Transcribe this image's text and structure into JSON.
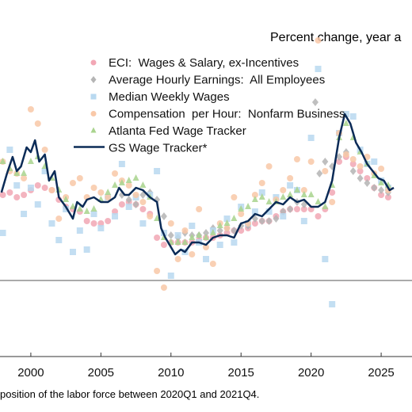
{
  "subtitle": "Percent change, year a",
  "footnote": "position of the labor force between 2020Q1 and 2021Q4.",
  "chart_data": {
    "type": "scatter",
    "xlim": [
      1997.8,
      2027.2
    ],
    "ylim": [
      -3.2,
      10.8
    ],
    "x_ticks": [
      2000,
      2005,
      2010,
      2015,
      2020,
      2025
    ],
    "x_tick_labels": [
      "2000",
      "2005",
      "2010",
      "2015",
      "2020",
      "2025"
    ],
    "zero_line": 0,
    "grid": false,
    "legend_position": "top-left",
    "series": [
      {
        "name": "ECI:  Wages & Salary, ex-Incentives",
        "kind": "dots",
        "marker": "circle",
        "color": "#f2a7b5",
        "x": [
          1998.0,
          1998.5,
          1999.0,
          1999.5,
          2000.0,
          2000.5,
          2001.0,
          2001.5,
          2002.0,
          2002.5,
          2003.0,
          2003.5,
          2004.0,
          2004.5,
          2005.0,
          2005.5,
          2006.0,
          2006.5,
          2007.0,
          2007.5,
          2008.0,
          2008.5,
          2009.0,
          2009.5,
          2010.0,
          2010.5,
          2011.0,
          2011.5,
          2012.0,
          2012.5,
          2013.0,
          2013.5,
          2014.0,
          2014.5,
          2015.0,
          2015.5,
          2016.0,
          2016.5,
          2017.0,
          2017.5,
          2018.0,
          2018.5,
          2019.0,
          2019.5,
          2020.0,
          2020.5,
          2021.0,
          2021.5,
          2022.0,
          2022.5,
          2023.0,
          2023.5,
          2024.0,
          2024.5,
          2025.0,
          2025.5
        ],
        "y": [
          3.6,
          3.7,
          3.5,
          3.6,
          3.8,
          4.0,
          3.9,
          3.8,
          3.4,
          3.1,
          3.0,
          2.9,
          2.5,
          2.4,
          2.4,
          2.5,
          2.9,
          3.2,
          3.3,
          3.2,
          3.0,
          2.8,
          1.8,
          1.5,
          1.6,
          1.6,
          1.6,
          1.6,
          1.7,
          1.8,
          1.8,
          1.9,
          2.0,
          2.1,
          2.1,
          2.2,
          2.4,
          2.5,
          2.5,
          2.7,
          2.9,
          3.0,
          3.0,
          3.0,
          3.0,
          2.7,
          3.0,
          3.7,
          5.0,
          5.2,
          4.9,
          4.6,
          4.3,
          3.9,
          3.6,
          3.5
        ]
      },
      {
        "name": "Average Hourly Earnings:  All Employees",
        "kind": "dots",
        "marker": "diamond",
        "color": "#b5b5b5",
        "x": [
          2006.5,
          2007.0,
          2007.5,
          2008.0,
          2008.5,
          2009.0,
          2009.5,
          2010.0,
          2010.5,
          2011.0,
          2011.5,
          2012.0,
          2012.5,
          2013.0,
          2013.5,
          2014.0,
          2014.5,
          2015.0,
          2015.5,
          2016.0,
          2016.5,
          2017.0,
          2017.5,
          2018.0,
          2018.5,
          2019.0,
          2019.5,
          2020.3,
          2020.6,
          2021.0,
          2021.5,
          2022.0,
          2022.5,
          2023.0,
          2023.5,
          2024.0,
          2024.5,
          2025.0,
          2025.5
        ],
        "y": [
          3.6,
          3.4,
          3.2,
          3.6,
          3.7,
          3.4,
          2.7,
          1.9,
          1.8,
          2.0,
          1.9,
          1.9,
          2.0,
          2.2,
          2.1,
          2.2,
          2.1,
          2.3,
          2.3,
          2.6,
          2.5,
          2.5,
          2.6,
          2.9,
          3.0,
          3.3,
          3.2,
          7.5,
          4.5,
          5.0,
          4.8,
          5.2,
          5.4,
          4.6,
          4.3,
          4.1,
          3.9,
          3.8,
          3.7
        ]
      },
      {
        "name": "Median Weekly Wages",
        "kind": "dots",
        "marker": "square",
        "color": "#b9d9f0",
        "x": [
          1998.0,
          1998.5,
          1999.0,
          1999.5,
          2000.0,
          2000.5,
          2001.0,
          2001.5,
          2002.0,
          2002.5,
          2003.0,
          2003.5,
          2004.0,
          2004.5,
          2005.0,
          2005.5,
          2006.0,
          2006.5,
          2007.0,
          2007.5,
          2008.0,
          2008.5,
          2009.0,
          2009.5,
          2010.0,
          2010.5,
          2011.0,
          2011.5,
          2012.0,
          2012.5,
          2013.0,
          2013.5,
          2014.0,
          2014.5,
          2015.0,
          2015.5,
          2016.0,
          2016.5,
          2017.0,
          2017.5,
          2018.0,
          2018.5,
          2019.0,
          2019.5,
          2020.0,
          2020.5,
          2021.0,
          2021.5,
          2022.0,
          2022.5,
          2023.0,
          2023.5,
          2024.0,
          2024.5,
          2025.0,
          2025.5
        ],
        "y": [
          2.0,
          5.5,
          4.0,
          2.8,
          3.9,
          3.2,
          4.6,
          2.4,
          1.7,
          3.0,
          1.2,
          2.1,
          1.3,
          2.8,
          2.2,
          3.5,
          2.7,
          4.9,
          3.1,
          3.5,
          2.4,
          3.6,
          4.6,
          2.0,
          0.2,
          1.9,
          1.2,
          2.3,
          1.6,
          0.9,
          2.1,
          1.5,
          2.6,
          1.6,
          3.1,
          2.4,
          2.9,
          3.7,
          2.9,
          3.5,
          2.7,
          4.0,
          3.8,
          2.5,
          6.0,
          8.9,
          0.9,
          -1.0,
          6.2,
          7.0,
          6.9,
          5.5,
          4.9,
          5.0,
          4.2,
          3.9
        ]
      },
      {
        "name": "Compensation  per Hour:  Nonfarm Business",
        "kind": "dots",
        "marker": "circle",
        "color": "#f9c8a8",
        "x": [
          1998.0,
          1998.5,
          1999.0,
          1999.5,
          2000.0,
          2000.5,
          2001.0,
          2001.5,
          2002.0,
          2002.5,
          2003.0,
          2003.5,
          2004.0,
          2004.5,
          2005.0,
          2005.5,
          2006.0,
          2006.5,
          2007.0,
          2007.5,
          2008.0,
          2008.5,
          2009.0,
          2009.5,
          2010.0,
          2010.5,
          2011.0,
          2011.5,
          2012.0,
          2012.5,
          2013.0,
          2013.5,
          2014.0,
          2014.5,
          2015.0,
          2015.5,
          2016.0,
          2016.5,
          2017.0,
          2017.5,
          2018.0,
          2018.5,
          2019.0,
          2019.5,
          2020.0,
          2020.5,
          2021.0,
          2021.5,
          2022.0,
          2022.5,
          2023.0,
          2023.5,
          2024.0,
          2024.5,
          2025.0,
          2025.5
        ],
        "y": [
          5.0,
          4.6,
          4.5,
          4.3,
          7.2,
          6.6,
          5.5,
          3.8,
          2.6,
          3.5,
          4.1,
          4.3,
          3.5,
          3.9,
          3.7,
          3.5,
          4.5,
          4.2,
          4.0,
          3.6,
          3.3,
          2.7,
          0.4,
          -0.3,
          2.4,
          0.9,
          2.1,
          1.1,
          3.0,
          1.4,
          0.7,
          2.4,
          2.2,
          3.5,
          2.8,
          2.4,
          3.6,
          4.1,
          4.8,
          3.4,
          3.8,
          4.3,
          5.1,
          3.8,
          5.0,
          10.1,
          4.6,
          3.3,
          6.2,
          5.3,
          5.1,
          4.8,
          5.2,
          4.5,
          4.7,
          3.8
        ]
      },
      {
        "name": "Atlanta Fed Wage Tracker",
        "kind": "dots",
        "marker": "triangle",
        "color": "#a9d48e",
        "x": [
          1998.0,
          1998.5,
          1999.0,
          1999.5,
          2000.0,
          2000.5,
          2001.0,
          2001.5,
          2002.0,
          2002.5,
          2003.0,
          2003.5,
          2004.0,
          2004.5,
          2005.0,
          2005.5,
          2006.0,
          2006.5,
          2007.0,
          2007.5,
          2008.0,
          2008.5,
          2009.0,
          2009.5,
          2010.0,
          2010.5,
          2011.0,
          2011.5,
          2012.0,
          2012.5,
          2013.0,
          2013.5,
          2014.0,
          2014.5,
          2015.0,
          2015.5,
          2016.0,
          2016.5,
          2017.0,
          2017.5,
          2018.0,
          2018.5,
          2019.0,
          2019.5,
          2020.0,
          2020.5,
          2021.0,
          2021.5,
          2022.0,
          2022.5,
          2023.0,
          2023.5,
          2024.0,
          2024.5,
          2025.0,
          2025.5
        ],
        "y": [
          5.0,
          4.7,
          4.5,
          4.5,
          5.0,
          5.2,
          4.8,
          4.3,
          3.8,
          3.4,
          3.1,
          3.0,
          2.9,
          3.0,
          3.4,
          3.7,
          4.0,
          4.1,
          4.2,
          4.3,
          4.0,
          3.5,
          2.6,
          1.8,
          1.6,
          1.6,
          1.6,
          1.8,
          1.9,
          1.8,
          2.0,
          2.3,
          2.4,
          2.6,
          3.0,
          3.1,
          3.4,
          3.5,
          3.3,
          3.3,
          3.5,
          3.6,
          3.8,
          3.6,
          3.6,
          3.3,
          3.1,
          4.0,
          6.0,
          6.6,
          6.0,
          5.4,
          4.9,
          4.4,
          4.1,
          4.0
        ]
      },
      {
        "name": "GS Wage Tracker*",
        "kind": "line",
        "color": "#0b2b57",
        "x": [
          1997.9,
          1998.3,
          1998.7,
          1999.0,
          1999.3,
          1999.7,
          2000.0,
          2000.3,
          2000.6,
          2001.0,
          2001.3,
          2001.7,
          2002.0,
          2002.5,
          2003.0,
          2003.3,
          2003.7,
          2004.0,
          2004.5,
          2005.0,
          2005.5,
          2006.0,
          2006.3,
          2006.7,
          2007.0,
          2007.5,
          2008.0,
          2008.5,
          2009.0,
          2009.3,
          2009.6,
          2010.0,
          2010.3,
          2010.7,
          2011.0,
          2011.5,
          2012.0,
          2012.5,
          2013.0,
          2013.5,
          2014.0,
          2014.5,
          2015.0,
          2015.5,
          2016.0,
          2016.5,
          2017.0,
          2017.5,
          2018.0,
          2018.5,
          2019.0,
          2019.5,
          2020.0,
          2020.5,
          2021.0,
          2021.5,
          2022.0,
          2022.4,
          2022.8,
          2023.2,
          2023.6,
          2024.0,
          2024.4,
          2024.8,
          2025.2,
          2025.6,
          2025.9
        ],
        "y": [
          3.7,
          4.5,
          5.2,
          4.6,
          4.8,
          5.6,
          5.4,
          5.9,
          5.0,
          5.3,
          4.2,
          4.6,
          3.5,
          3.1,
          2.6,
          3.3,
          3.1,
          3.4,
          3.5,
          3.3,
          3.3,
          3.5,
          3.9,
          3.6,
          3.6,
          3.9,
          3.8,
          3.5,
          3.3,
          2.2,
          1.8,
          1.4,
          1.1,
          1.3,
          1.2,
          1.6,
          1.6,
          1.5,
          1.8,
          1.9,
          1.9,
          1.8,
          2.4,
          2.5,
          2.8,
          2.7,
          3.0,
          3.3,
          3.2,
          3.5,
          3.3,
          3.4,
          3.1,
          3.1,
          3.3,
          4.2,
          6.0,
          7.0,
          6.6,
          5.8,
          5.4,
          4.9,
          4.6,
          4.3,
          4.2,
          3.8,
          3.9
        ]
      }
    ]
  }
}
